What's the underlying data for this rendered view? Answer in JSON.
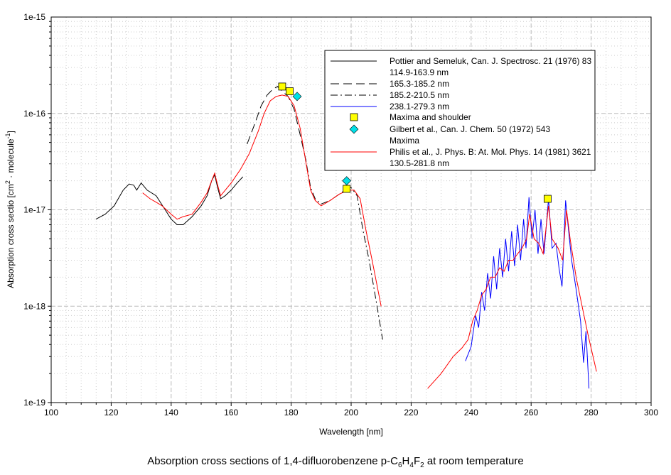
{
  "chart_data": {
    "type": "line",
    "caption": {
      "pre": "Absorption cross sections of 1,4-difluorobenzene p-C",
      "s1": "6",
      "m1": "H",
      "s2": "4",
      "m2": "F",
      "s3": "2",
      "post": " at room temperature"
    },
    "xlabel": "Wavelength [nm]",
    "ylabel": {
      "main": "Absorption cross sectio [cm",
      "sup1": "2",
      "mid": " · molecule",
      "sup2": "-1",
      "end": "]"
    },
    "xlim": [
      100,
      300
    ],
    "ylim": [
      1e-19,
      1e-15
    ],
    "yscale": "log",
    "grid": true,
    "legend_placement": "top-right",
    "x_ticks": [
      "100",
      "120",
      "140",
      "160",
      "180",
      "200",
      "220",
      "240",
      "260",
      "280",
      "300"
    ],
    "y_ticks": [
      "1e-19",
      "1e-18",
      "1e-17",
      "1e-16",
      "1e-15"
    ],
    "series": [
      {
        "name": "Pottier and Semeluk, Can. J. Spectrosc. 21 (1976) 83",
        "name2": "114.9-163.9 nm",
        "style": "solid",
        "color": "#000000",
        "points": [
          [
            114.9,
            8e-18
          ],
          [
            118,
            9e-18
          ],
          [
            121,
            1.1e-17
          ],
          [
            124,
            1.6e-17
          ],
          [
            126,
            1.85e-17
          ],
          [
            127.5,
            1.8e-17
          ],
          [
            128.5,
            1.6e-17
          ],
          [
            130,
            1.9e-17
          ],
          [
            132,
            1.6e-17
          ],
          [
            135,
            1.4e-17
          ],
          [
            138,
            1e-17
          ],
          [
            140,
            8e-18
          ],
          [
            142,
            7e-18
          ],
          [
            144,
            7e-18
          ],
          [
            147,
            8.5e-18
          ],
          [
            150,
            1.1e-17
          ],
          [
            152,
            1.4e-17
          ],
          [
            153.5,
            2e-17
          ],
          [
            154.5,
            2.3e-17
          ],
          [
            155.5,
            1.7e-17
          ],
          [
            156.5,
            1.3e-17
          ],
          [
            158,
            1.4e-17
          ],
          [
            160,
            1.6e-17
          ],
          [
            162,
            1.9e-17
          ],
          [
            163.9,
            2.2e-17
          ]
        ]
      },
      {
        "name": "165.3-185.2 nm",
        "style": "dashed",
        "color": "#000000",
        "points": [
          [
            165.3,
            4.8e-17
          ],
          [
            168,
            8e-17
          ],
          [
            170,
            1.2e-16
          ],
          [
            172,
            1.55e-16
          ],
          [
            174,
            1.8e-16
          ],
          [
            175.5,
            1.9e-16
          ],
          [
            177,
            1.7e-16
          ],
          [
            179,
            1.5e-16
          ],
          [
            181,
            1.1e-16
          ],
          [
            183,
            6e-17
          ],
          [
            185.2,
            3e-17
          ]
        ]
      },
      {
        "name": "185.2-210.5 nm",
        "style": "dashdot",
        "color": "#000000",
        "points": [
          [
            185.2,
            2.9e-17
          ],
          [
            186.5,
            1.7e-17
          ],
          [
            188,
            1.3e-17
          ],
          [
            190,
            1.15e-17
          ],
          [
            193,
            1.25e-17
          ],
          [
            196,
            1.45e-17
          ],
          [
            198,
            1.6e-17
          ],
          [
            200,
            1.7e-17
          ],
          [
            202,
            1.4e-17
          ],
          [
            204,
            6e-18
          ],
          [
            206,
            3e-18
          ],
          [
            208,
            1.3e-18
          ],
          [
            210.5,
            4.5e-19
          ]
        ]
      },
      {
        "name": "238.1-279.3 nm",
        "style": "solid",
        "color": "#0000ff",
        "points": [
          [
            238.1,
            2.7e-19
          ],
          [
            240,
            3.8e-19
          ],
          [
            241.5,
            8e-19
          ],
          [
            242.5,
            6e-19
          ],
          [
            243.5,
            1.4e-18
          ],
          [
            244.5,
            9e-19
          ],
          [
            245.5,
            2.2e-18
          ],
          [
            246.5,
            1.2e-18
          ],
          [
            247.5,
            3.3e-18
          ],
          [
            248.5,
            1.5e-18
          ],
          [
            249.5,
            4e-18
          ],
          [
            250.5,
            2e-18
          ],
          [
            251.5,
            5e-18
          ],
          [
            252.5,
            2.3e-18
          ],
          [
            253.5,
            6e-18
          ],
          [
            254.5,
            2.6e-18
          ],
          [
            255.5,
            7e-18
          ],
          [
            256.5,
            3e-18
          ],
          [
            257.5,
            8e-18
          ],
          [
            258.3,
            4e-18
          ],
          [
            259.3,
            1.35e-17
          ],
          [
            260.3,
            5e-18
          ],
          [
            261.3,
            1e-17
          ],
          [
            262.3,
            3.5e-18
          ],
          [
            263.3,
            8e-18
          ],
          [
            264.3,
            3.5e-18
          ],
          [
            265.8,
            1.3e-17
          ],
          [
            267,
            4e-18
          ],
          [
            268.3,
            4.5e-18
          ],
          [
            269.3,
            2.5e-18
          ],
          [
            270.3,
            1.6e-18
          ],
          [
            271.5,
            1.25e-17
          ],
          [
            272.5,
            6e-18
          ],
          [
            273.5,
            3e-18
          ],
          [
            275,
            1.5e-18
          ],
          [
            276.5,
            7e-19
          ],
          [
            277.5,
            2.6e-19
          ],
          [
            278.3,
            5.5e-19
          ],
          [
            279.3,
            1.4e-19
          ]
        ]
      },
      {
        "name": "Philis et al., J. Phys. B: At. Mol. Phys. 14 (1981) 3621",
        "name2": "130.5-281.8 nm",
        "style": "solid",
        "color": "#ff0000",
        "points": [
          [
            130.5,
            1.5e-17
          ],
          [
            133,
            1.3e-17
          ],
          [
            135,
            1.2e-17
          ],
          [
            137,
            1.1e-17
          ],
          [
            140,
            9e-18
          ],
          [
            142,
            8e-18
          ],
          [
            144,
            8.5e-18
          ],
          [
            147,
            9e-18
          ],
          [
            150,
            1.2e-17
          ],
          [
            152,
            1.5e-17
          ],
          [
            153.5,
            2e-17
          ],
          [
            154.5,
            2.4e-17
          ],
          [
            155.5,
            1.8e-17
          ],
          [
            156.5,
            1.4e-17
          ],
          [
            160,
            1.9e-17
          ],
          [
            163,
            2.6e-17
          ],
          [
            166,
            3.8e-17
          ],
          [
            169,
            6.5e-17
          ],
          [
            171,
            1e-16
          ],
          [
            173,
            1.35e-16
          ],
          [
            175,
            1.5e-16
          ],
          [
            177,
            1.55e-16
          ],
          [
            179,
            1.5e-16
          ],
          [
            181,
            1.2e-16
          ],
          [
            183,
            7e-17
          ],
          [
            185,
            3e-17
          ],
          [
            186.5,
            1.6e-17
          ],
          [
            188,
            1.25e-17
          ],
          [
            190,
            1.1e-17
          ],
          [
            193,
            1.25e-17
          ],
          [
            196,
            1.45e-17
          ],
          [
            199,
            1.6e-17
          ],
          [
            201,
            1.6e-17
          ],
          [
            203,
            1.3e-17
          ],
          [
            205,
            6e-18
          ],
          [
            207,
            3e-18
          ],
          [
            210,
            1e-18
          ],
          [
            null,
            null
          ],
          [
            225.5,
            1.4e-19
          ],
          [
            230,
            2e-19
          ],
          [
            234,
            3e-19
          ],
          [
            237,
            3.7e-19
          ],
          [
            239,
            4.5e-19
          ],
          [
            240.5,
            7e-19
          ],
          [
            242,
            9e-19
          ],
          [
            243.5,
            1.3e-18
          ],
          [
            245,
            1.5e-18
          ],
          [
            246.5,
            2e-18
          ],
          [
            248,
            2e-18
          ],
          [
            249.5,
            2.5e-18
          ],
          [
            251,
            2.3e-18
          ],
          [
            252.5,
            3e-18
          ],
          [
            254,
            3e-18
          ],
          [
            255.5,
            3.5e-18
          ],
          [
            257,
            4e-18
          ],
          [
            258.5,
            5e-18
          ],
          [
            259.5,
            9e-18
          ],
          [
            261,
            5e-18
          ],
          [
            262.5,
            4.5e-18
          ],
          [
            264,
            3.5e-18
          ],
          [
            265.8,
            1.1e-17
          ],
          [
            267,
            5e-18
          ],
          [
            269,
            4e-18
          ],
          [
            270.5,
            3e-18
          ],
          [
            271.8,
            1e-17
          ],
          [
            273,
            5e-18
          ],
          [
            275,
            2e-18
          ],
          [
            277,
            1e-18
          ],
          [
            279,
            5e-19
          ],
          [
            281.8,
            2.1e-19
          ]
        ]
      }
    ],
    "markers": [
      {
        "name": "Maxima and shoulder",
        "shape": "square",
        "color": "#ffff00",
        "points": [
          [
            177,
            1.9e-16
          ],
          [
            179.5,
            1.7e-16
          ],
          [
            198.5,
            1.65e-17
          ],
          [
            265.5,
            1.3e-17
          ]
        ]
      },
      {
        "name": "Gilbert et al., Can. J. Chem. 50 (1972) 543",
        "name2": "Maxima",
        "shape": "diamond",
        "color": "#00e0e8",
        "points": [
          [
            182,
            1.5e-16
          ],
          [
            198.5,
            2e-17
          ]
        ]
      }
    ]
  }
}
